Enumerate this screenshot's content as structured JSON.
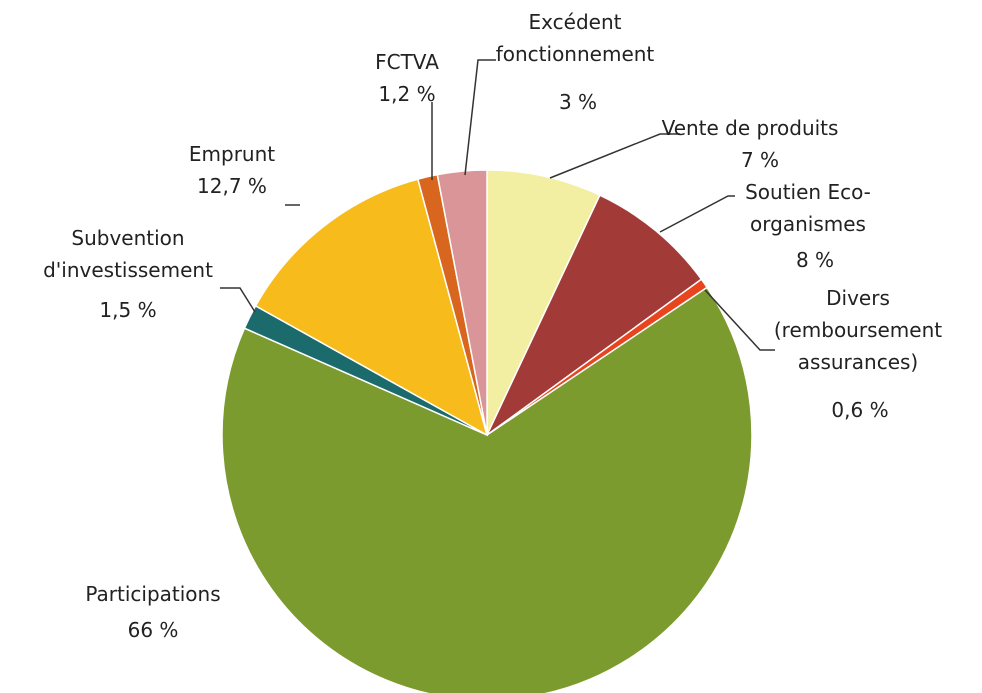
{
  "chart_data": {
    "type": "pie",
    "categories": [
      "Vente de produits",
      "Soutien Eco-organismes",
      "Divers (remboursement assurances)",
      "Participations",
      "Subvention d'investissement",
      "Emprunt",
      "FCTVA",
      "Excédent fonctionnement"
    ],
    "values": [
      7,
      8,
      0.6,
      66,
      1.5,
      12.7,
      1.2,
      3
    ],
    "value_labels": [
      "7 %",
      "8 %",
      "0,6 %",
      "66 %",
      "1,5 %",
      "12,7 %",
      "1,2 %",
      "3 %"
    ],
    "colors": [
      "#f2efa2",
      "#a23a38",
      "#e8441e",
      "#7b9b2f",
      "#1b6a6c",
      "#f7bb1c",
      "#d8661e",
      "#d99597"
    ]
  }
}
